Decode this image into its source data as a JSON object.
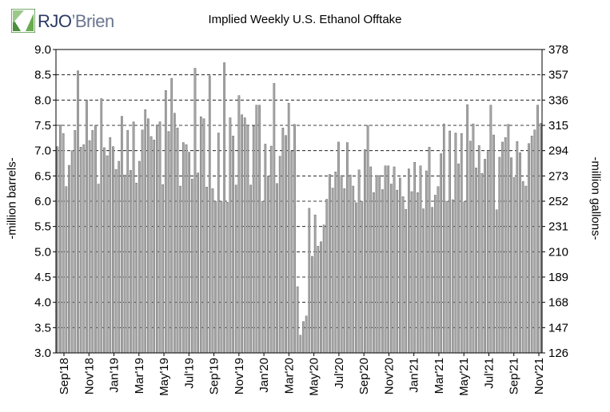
{
  "logo": {
    "text_main": "RJO",
    "text_rest": "’Brien"
  },
  "chart_data": {
    "type": "bar",
    "title": "Implied  Weekly U.S. Ethanol Offtake",
    "ylabel": "-million barrels-",
    "y2label": "-million gallons-",
    "ylim": [
      3.0,
      9.0
    ],
    "y2lim": [
      126,
      378
    ],
    "yticks": [
      "3.0",
      "3.5",
      "4.0",
      "4.5",
      "5.0",
      "5.5",
      "6.0",
      "6.5",
      "7.0",
      "7.5",
      "8.0",
      "8.5",
      "9.0"
    ],
    "y2ticks": [
      "126",
      "147",
      "168",
      "189",
      "210",
      "231",
      "252",
      "273",
      "294",
      "315",
      "336",
      "357",
      "378"
    ],
    "grid": "dashed horizontal",
    "bar_color": "#a8a8a8",
    "xtick_labels": [
      "Sep'18",
      "Nov'18",
      "Jan'19",
      "Mar'19",
      "May'19",
      "Jul'19",
      "Sep'19",
      "Nov'19",
      "Jan'20",
      "Mar'20",
      "May'20",
      "Jul'20",
      "Sep'20",
      "Nov'20",
      "Jan'21",
      "Mar'21",
      "May'21",
      "Jul'21",
      "Sep'21",
      "Nov'21"
    ],
    "values": [
      7.08,
      7.51,
      7.34,
      6.29,
      6.71,
      7.0,
      7.4,
      8.58,
      7.07,
      7.12,
      8.0,
      7.2,
      7.4,
      7.5,
      6.34,
      8.03,
      7.06,
      6.9,
      7.26,
      7.08,
      6.63,
      6.79,
      7.68,
      6.52,
      7.4,
      6.61,
      7.57,
      6.36,
      6.79,
      7.41,
      7.81,
      7.63,
      7.28,
      7.21,
      7.51,
      7.57,
      6.33,
      8.19,
      7.38,
      8.43,
      7.74,
      7.45,
      6.3,
      7.16,
      7.12,
      6.97,
      6.44,
      8.63,
      6.56,
      7.67,
      7.63,
      6.28,
      8.48,
      6.25,
      6.0,
      7.35,
      6.0,
      8.74,
      5.98,
      7.65,
      7.29,
      6.32,
      8.09,
      7.71,
      7.65,
      7.51,
      6.32,
      7.49,
      7.9,
      7.9,
      6.0,
      7.13,
      6.5,
      7.09,
      8.33,
      6.35,
      6.89,
      7.45,
      7.3,
      7.94,
      6.99,
      7.52,
      4.31,
      3.35,
      3.62,
      3.73,
      5.86,
      4.91,
      5.73,
      5.11,
      5.2,
      5.53,
      6.04,
      6.53,
      6.26,
      6.58,
      7.17,
      6.51,
      6.25,
      7.16,
      6.52,
      6.3,
      5.97,
      6.62,
      6.0,
      7.02,
      7.5,
      6.68,
      6.17,
      6.51,
      6.51,
      6.23,
      6.7,
      6.7,
      6.34,
      6.68,
      6.22,
      6.46,
      6.09,
      5.84,
      6.64,
      6.19,
      6.77,
      6.17,
      6.7,
      5.85,
      6.6,
      7.07,
      5.88,
      6.12,
      6.29,
      6.94,
      7.53,
      6.0,
      7.39,
      6.03,
      7.35,
      6.74,
      7.34,
      5.99,
      7.91,
      7.19,
      7.53,
      6.66,
      7.1,
      6.55,
      6.83,
      6.98,
      7.9,
      7.31,
      5.83,
      6.87,
      7.17,
      7.26,
      7.52,
      6.86,
      6.47,
      7.18,
      6.96,
      6.39,
      6.3,
      7.14,
      7.29,
      7.41,
      7.9,
      7.54
    ]
  }
}
